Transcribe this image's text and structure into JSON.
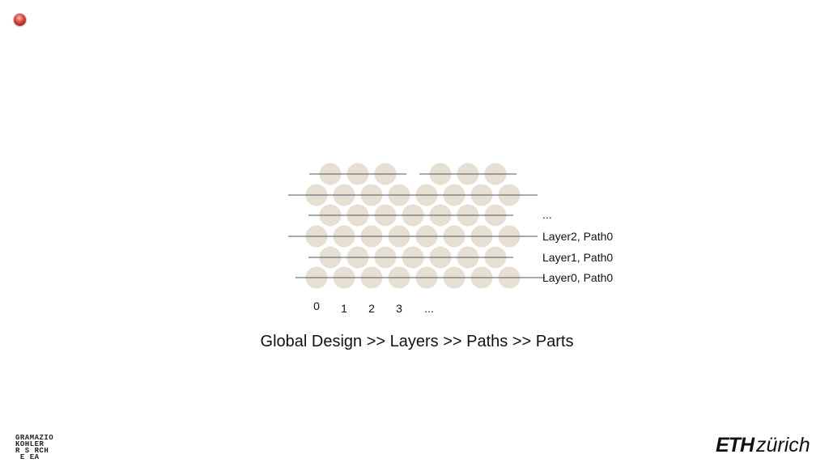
{
  "caption": "Global Design >> Layers >> Paths >> Parts",
  "diagram": {
    "layer_labels": [
      "...",
      "Layer2, Path0",
      "Layer1, Path0",
      "Layer0, Path0"
    ],
    "part_indices": [
      "0",
      "1",
      "2",
      "3",
      "..."
    ],
    "colors": {
      "part": "#e6dfd3",
      "path_line": "#555555"
    }
  },
  "logos": {
    "research_lines": [
      "GRAMAZIO",
      "KOHLER",
      "R S RCH",
      " E EA"
    ],
    "eth_bold": "ETH",
    "eth_italic": "zürich"
  }
}
